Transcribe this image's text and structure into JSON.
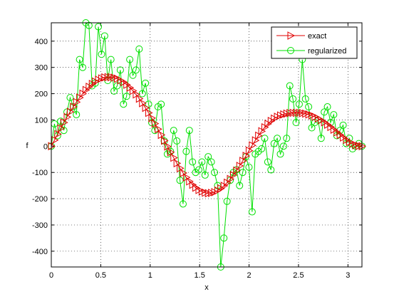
{
  "chart_data": {
    "type": "line",
    "title": "",
    "xlabel": "x",
    "ylabel": "f",
    "xlim": [
      0,
      3.1416
    ],
    "ylim": [
      -460,
      470
    ],
    "xticks": [
      0,
      0.5,
      1,
      1.5,
      2,
      2.5,
      3
    ],
    "xtick_labels": [
      "0",
      "0.5",
      "1",
      "1.5",
      "2",
      "2.5",
      "3"
    ],
    "yticks": [
      -400,
      -300,
      -200,
      -100,
      0,
      100,
      200,
      300,
      400
    ],
    "ytick_labels": [
      "-400",
      "-300",
      "-200",
      "-100",
      "0",
      "100",
      "200",
      "300",
      "400"
    ],
    "grid": true,
    "legend_position": "top-right",
    "series": [
      {
        "name": "exact",
        "color": "#e00000",
        "marker": "triangle-right",
        "x": [
          0,
          0.0317,
          0.0635,
          0.0952,
          0.127,
          0.1587,
          0.1904,
          0.2222,
          0.2539,
          0.2856,
          0.3174,
          0.3491,
          0.3808,
          0.4126,
          0.4443,
          0.476,
          0.5078,
          0.5395,
          0.5712,
          0.603,
          0.6347,
          0.6664,
          0.6982,
          0.7299,
          0.7616,
          0.7934,
          0.8251,
          0.8568,
          0.8886,
          0.9203,
          0.952,
          0.9838,
          1.0155,
          1.0472,
          1.079,
          1.1107,
          1.1424,
          1.1742,
          1.2059,
          1.2376,
          1.2694,
          1.3011,
          1.3328,
          1.3646,
          1.3963,
          1.428,
          1.4598,
          1.4915,
          1.5232,
          1.555,
          1.5867,
          1.6184,
          1.6502,
          1.6819,
          1.7136,
          1.7454,
          1.7771,
          1.8088,
          1.8406,
          1.8723,
          1.904,
          1.9358,
          1.9675,
          1.9992,
          2.031,
          2.0627,
          2.0944,
          2.1262,
          2.1579,
          2.1896,
          2.2214,
          2.2531,
          2.2848,
          2.3166,
          2.3483,
          2.38,
          2.4118,
          2.4435,
          2.4752,
          2.507,
          2.5387,
          2.5704,
          2.6022,
          2.6339,
          2.6656,
          2.6974,
          2.7291,
          2.7608,
          2.7926,
          2.8243,
          2.856,
          2.8878,
          2.9195,
          2.9512,
          2.983,
          3.0147,
          3.0464,
          3.0782,
          3.1099,
          3.1416
        ],
        "y": [
          0,
          23,
          46,
          68,
          90,
          111,
          131,
          150,
          168,
          185,
          200,
          214,
          226,
          237,
          246,
          253,
          258,
          262,
          263,
          263,
          261,
          257,
          251,
          244,
          234,
          223,
          211,
          197,
          181,
          164,
          146,
          127,
          107,
          86,
          65,
          43,
          21,
          -1,
          -23,
          -44,
          -65,
          -84,
          -102,
          -119,
          -134,
          -147,
          -158,
          -167,
          -173,
          -177,
          -179,
          -178,
          -175,
          -169,
          -161,
          -151,
          -139,
          -125,
          -110,
          -93,
          -75,
          -56,
          -37,
          -17,
          3,
          22,
          40,
          57,
          72,
          85,
          96,
          105,
          112,
          117,
          121,
          124,
          126,
          127,
          127,
          127,
          126,
          124,
          121,
          117,
          112,
          106,
          99,
          91,
          82,
          73,
          63,
          53,
          43,
          33,
          24,
          16,
          9,
          4,
          1,
          0
        ]
      },
      {
        "name": "regularized",
        "color": "#00e000",
        "marker": "circle",
        "x": [
          0,
          0.0317,
          0.0635,
          0.0952,
          0.127,
          0.1587,
          0.1904,
          0.2222,
          0.2539,
          0.2856,
          0.3174,
          0.3491,
          0.3808,
          0.4126,
          0.4443,
          0.476,
          0.5078,
          0.5395,
          0.5712,
          0.603,
          0.6347,
          0.6664,
          0.6982,
          0.7299,
          0.7616,
          0.7934,
          0.8251,
          0.8568,
          0.8886,
          0.9203,
          0.952,
          0.9838,
          1.0155,
          1.0472,
          1.079,
          1.1107,
          1.1424,
          1.1742,
          1.2059,
          1.2376,
          1.2694,
          1.3011,
          1.3328,
          1.3646,
          1.3963,
          1.428,
          1.4598,
          1.4915,
          1.5232,
          1.555,
          1.5867,
          1.6184,
          1.6502,
          1.6819,
          1.7136,
          1.7454,
          1.7771,
          1.8088,
          1.8406,
          1.8723,
          1.904,
          1.9358,
          1.9675,
          1.9992,
          2.031,
          2.0627,
          2.0944,
          2.1262,
          2.1579,
          2.1896,
          2.2214,
          2.2531,
          2.2848,
          2.3166,
          2.3483,
          2.38,
          2.4118,
          2.4435,
          2.4752,
          2.507,
          2.5387,
          2.5704,
          2.6022,
          2.6339,
          2.6656,
          2.6974,
          2.7291,
          2.7608,
          2.7926,
          2.8243,
          2.856,
          2.8878,
          2.9195,
          2.9512,
          2.983,
          3.0147,
          3.0464,
          3.0782,
          3.1099,
          3.1416
        ],
        "y": [
          0,
          85,
          40,
          95,
          60,
          130,
          185,
          150,
          120,
          330,
          300,
          470,
          460,
          230,
          240,
          455,
          350,
          420,
          250,
          330,
          210,
          230,
          290,
          160,
          190,
          330,
          270,
          290,
          370,
          200,
          240,
          160,
          90,
          60,
          150,
          160,
          20,
          -30,
          -20,
          60,
          20,
          -130,
          -220,
          -20,
          60,
          -60,
          -100,
          -90,
          -60,
          -110,
          -40,
          -60,
          -100,
          -150,
          -460,
          -350,
          -210,
          -130,
          -100,
          -90,
          -150,
          -100,
          -40,
          -80,
          -250,
          -30,
          -20,
          -10,
          30,
          -60,
          -90,
          10,
          30,
          -30,
          0,
          30,
          230,
          180,
          90,
          160,
          330,
          180,
          150,
          70,
          90,
          100,
          30,
          130,
          150,
          90,
          120,
          40,
          60,
          80,
          10,
          30,
          -10,
          0,
          10,
          0
        ]
      }
    ]
  }
}
